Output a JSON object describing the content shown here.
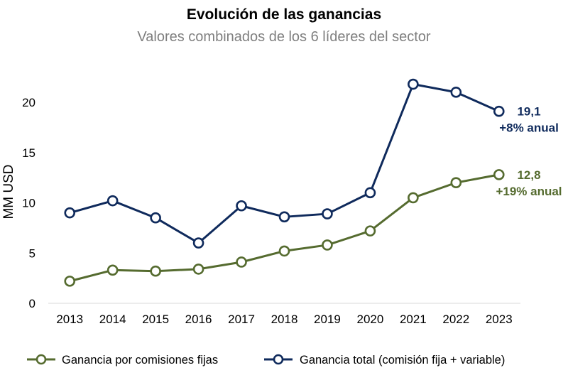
{
  "chart_data": {
    "type": "line",
    "title": "Evolución de las ganancias",
    "subtitle": "Valores combinados de los 6 líderes del sector",
    "xlabel": "",
    "ylabel": "MM USD",
    "ylim": [
      0,
      22
    ],
    "yticks": [
      "0",
      "5",
      "10",
      "15",
      "20"
    ],
    "categories": [
      "2013",
      "2014",
      "2015",
      "2016",
      "2017",
      "2018",
      "2019",
      "2020",
      "2021",
      "2022",
      "2023"
    ],
    "series": [
      {
        "name": "Ganancia por comisiones fijas",
        "color": "#556B2F",
        "values": [
          2.2,
          3.3,
          3.2,
          3.4,
          4.1,
          5.2,
          5.8,
          7.2,
          10.5,
          12.0,
          12.8
        ],
        "end_label": "12,8",
        "end_growth": "+19% anual"
      },
      {
        "name": "Ganancia total (comisión fija + variable)",
        "color": "#0F2A5C",
        "values": [
          9.0,
          10.2,
          8.5,
          6.0,
          9.7,
          8.6,
          8.9,
          11.0,
          21.8,
          21.0,
          19.1
        ],
        "end_label": "19,1",
        "end_growth": "+8% anual"
      }
    ],
    "legend_position": "bottom",
    "grid": false
  }
}
